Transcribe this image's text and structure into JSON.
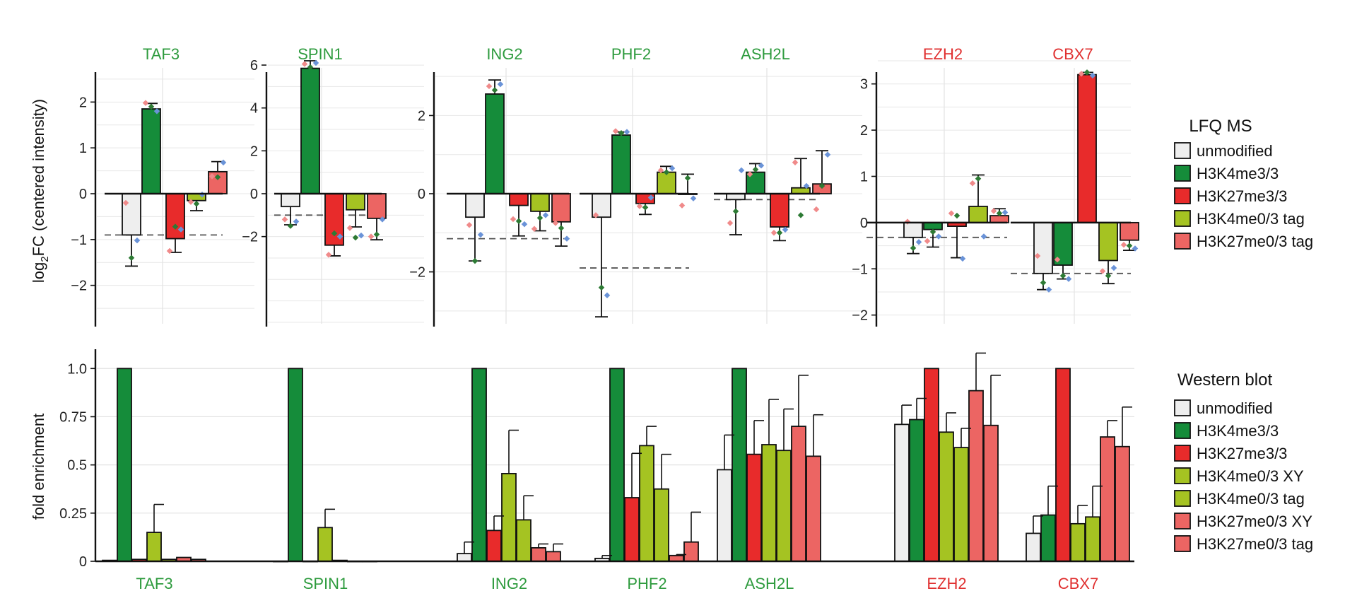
{
  "colors": {
    "green_text": "#2e9b3e",
    "red_text": "#e03030",
    "unmodified": "#eeeeee",
    "h3k4me3": "#158c3a",
    "h3k27me3": "#e82b2b",
    "h3k4me0": "#a5c322",
    "h3k27me0": "#ec6563",
    "dot_red": "#f08a8a",
    "dot_blue": "#6a93d8",
    "dot_green": "#2d7a34"
  },
  "chart_data": [
    {
      "type": "bar",
      "name": "LFQ MS",
      "ylabel": "log2FC (centered intensity)",
      "ylabel_main": "log",
      "ylabel_sub": "2",
      "ylabel_rest": "FC (centered intensity)",
      "legend": {
        "title": "LFQ MS",
        "entries": [
          "unmodified",
          "H3K4me3/3",
          "H3K27me3/3",
          "H3K4me0/3 tag",
          "H3K27me0/3 tag"
        ]
      },
      "groups": [
        {
          "label": "TAF3",
          "label_color": "green",
          "ylim": [
            -2.9,
            2.9
          ],
          "yticks": [
            -2,
            -1,
            0,
            1,
            2
          ],
          "halves": [
            {
              "values": [
                -0.9,
                1.85
              ],
              "errors": [
                0.68,
                0.12
              ],
              "dots": [
                [
                  -0.2,
                  -1.4,
                  -1.02
                ],
                [
                  1.98,
                  1.9,
                  1.8
                ]
              ]
            },
            {
              "values": [
                -0.98,
                -0.15,
                0.48
              ],
              "errors": [
                0.3,
                0.22,
                0.22
              ],
              "dots": [
                [
                  -1.25,
                  -0.72,
                  -0.78
                ],
                [
                  -0.18,
                  -0.22,
                  -0.02
                ],
                [
                  0.38,
                  0.36,
                  0.68
                ]
              ]
            }
          ],
          "baseline": -0.9
        },
        {
          "label": "SPIN1",
          "label_color": "green",
          "ylim": [
            -6.2,
            6.2
          ],
          "yticks": [
            -2,
            0,
            2,
            4,
            6
          ],
          "halves": [
            {
              "values": [
                -0.6,
                5.85
              ],
              "errors": [
                0.85,
                0.35
              ],
              "dots": [
                [
                  -1.2,
                  -1.5,
                  -1.3
                ],
                [
                  6.05,
                  5.9,
                  6.1
                ]
              ]
            },
            {
              "values": [
                -2.4,
                -0.75,
                -1.15
              ],
              "errors": [
                0.5,
                0.8,
                1.0
              ],
              "dots": [
                [
                  -2.85,
                  -1.85,
                  -2.0
                ],
                [
                  -1.6,
                  -2.05,
                  -1.95
                ],
                [
                  -2.0,
                  -1.9,
                  -1.2
                ]
              ]
            }
          ],
          "baseline": -1.0
        },
        {
          "label": "ING2",
          "label_color": "green",
          "ylim": [
            -3.4,
            3.4
          ],
          "yticks": [
            -2,
            0,
            2
          ],
          "halves": [
            {
              "values": [
                -0.6,
                2.55
              ],
              "errors": [
                1.12,
                0.36
              ],
              "dots": [
                [
                  -0.8,
                  -1.72,
                  -1.05
                ],
                [
                  2.75,
                  2.65,
                  2.8
                ]
              ]
            },
            {
              "values": [
                -0.3,
                -0.45,
                -0.72
              ],
              "errors": [
                0.78,
                0.5,
                0.62
              ],
              "dots": [
                [
                  -0.65,
                  -0.7,
                  -0.78
                ],
                [
                  -0.9,
                  -0.62,
                  -0.55
                ],
                [
                  -0.75,
                  -0.88,
                  -1.15
                ]
              ]
            }
          ],
          "baseline": -1.15
        },
        {
          "label": "PHF2",
          "label_color": "green",
          "ylim": [
            -3.4,
            3.4
          ],
          "yticks": [],
          "halves": [
            {
              "values": [
                -0.6,
                1.5
              ],
              "errors": [
                2.55,
                0.08
              ],
              "dots": [
                [
                  -0.55,
                  -2.4,
                  -2.6
                ],
                [
                  1.6,
                  1.55,
                  1.58
                ]
              ]
            },
            {
              "values": [
                -0.25,
                0.55,
                0.0
              ],
              "errors": [
                0.28,
                0.15,
                0.5
              ],
              "dots": [
                [
                  -0.32,
                  -0.35,
                  -0.1
                ],
                [
                  0.6,
                  0.55,
                  0.65
                ],
                [
                  -0.3,
                  0.4,
                  -0.12
                ]
              ]
            }
          ],
          "baseline": -1.9
        },
        {
          "label": "ASH2L",
          "label_color": "green",
          "ylim": [
            -3.4,
            3.4
          ],
          "yticks": [],
          "halves": [
            {
              "values": [
                -0.15,
                0.55
              ],
              "errors": [
                0.9,
                0.22
              ],
              "dots": [
                [
                  -0.75,
                  -0.45,
                  0.6
                ],
                [
                  0.5,
                  0.62,
                  0.72
                ]
              ]
            },
            {
              "values": [
                -0.85,
                0.15,
                0.25
              ],
              "errors": [
                0.35,
                0.75,
                0.85
              ],
              "dots": [
                [
                  -1.0,
                  -1.0,
                  -0.92
                ],
                [
                  0.8,
                  -0.55,
                  0.2
                ],
                [
                  -0.4,
                  0.2,
                  1.0
                ]
              ]
            }
          ],
          "baseline": -0.15
        },
        {
          "label": "EZH2",
          "label_color": "red",
          "ylim": [
            -2.25,
            3.5
          ],
          "yticks": [
            -2,
            -1,
            0,
            1,
            2,
            3
          ],
          "halves": [
            {
              "values": [
                -0.32,
                -0.15
              ],
              "errors": [
                0.35,
                0.38
              ],
              "dots": [
                [
                  0.02,
                  -0.55,
                  -0.42
                ],
                [
                  -0.4,
                  -0.2,
                  -0.3
                ]
              ]
            },
            {
              "values": [
                -0.08,
                0.35,
                0.15
              ],
              "errors": [
                0.68,
                0.68,
                0.15
              ],
              "dots": [
                [
                  0.2,
                  0.15,
                  -0.78
                ],
                [
                  0.85,
                  0.95,
                  -0.3
                ],
                [
                  0.25,
                  0.2,
                  0.22
                ]
              ]
            }
          ],
          "baseline": -0.32
        },
        {
          "label": "CBX7",
          "label_color": "red",
          "ylim": [
            -2.25,
            3.5
          ],
          "yticks": [],
          "halves": [
            {
              "values": [
                -1.1,
                -0.92
              ],
              "errors": [
                0.35,
                0.3
              ],
              "dots": [
                [
                  -0.72,
                  -1.3,
                  -1.45
                ],
                [
                  -0.8,
                  -1.15,
                  -1.22
                ]
              ]
            },
            {
              "values": [
                3.2,
                -0.82,
                -0.38
              ],
              "errors": [
                0.05,
                0.5,
                0.22
              ],
              "dots": [
                [
                  3.22,
                  3.25,
                  3.18
                ],
                [
                  -1.05,
                  -1.15,
                  -0.98
                ],
                [
                  -0.48,
                  -0.5,
                  -0.56
                ]
              ]
            }
          ],
          "baseline": -1.1
        }
      ]
    },
    {
      "type": "bar",
      "name": "Western blot",
      "ylabel": "fold enrichment",
      "ylim": [
        0,
        1.1
      ],
      "yticks": [
        0,
        0.25,
        0.5,
        0.75,
        1.0
      ],
      "ytick_labels": [
        "0",
        "0.25",
        "0.5",
        "0.75",
        "1.0"
      ],
      "legend": {
        "title": "Western blot",
        "entries": [
          "unmodified",
          "H3K4me3/3",
          "H3K27me3/3",
          "H3K4me0/3 XY",
          "H3K4me0/3 tag",
          "H3K27me0/3 XY",
          "H3K27me0/3 tag"
        ]
      },
      "groups": [
        {
          "label": "TAF3",
          "label_color": "green",
          "values": [
            0.005,
            1.0,
            0.01,
            0.15,
            0.01,
            0.02,
            0.01
          ],
          "errors": [
            0,
            0,
            0,
            0.145,
            0,
            0,
            0
          ]
        },
        {
          "label": "SPIN1",
          "label_color": "green",
          "values": [
            0.0,
            1.0,
            0.0,
            0.175,
            0.005,
            0.0,
            0.0
          ],
          "errors": [
            0,
            0,
            0,
            0.095,
            0,
            0,
            0
          ]
        },
        {
          "label": "ING2",
          "label_color": "green",
          "values": [
            0.04,
            1.0,
            0.16,
            0.455,
            0.215,
            0.07,
            0.05
          ],
          "errors": [
            0.06,
            0,
            0.075,
            0.225,
            0.125,
            0.02,
            0.04
          ]
        },
        {
          "label": "PHF2",
          "label_color": "green",
          "values": [
            0.015,
            1.0,
            0.33,
            0.6,
            0.375,
            0.03,
            0.1
          ],
          "errors": [
            0.015,
            0,
            0.23,
            0.1,
            0.18,
            0.005,
            0.155
          ]
        },
        {
          "label": "ASH2L",
          "label_color": "green",
          "values": [
            0.475,
            1.0,
            0.555,
            0.605,
            0.575,
            0.7,
            0.545
          ],
          "errors": [
            0.18,
            0,
            0.175,
            0.235,
            0.215,
            0.265,
            0.215
          ]
        },
        {
          "label": "EZH2",
          "label_color": "red",
          "values": [
            0.71,
            0.735,
            1.0,
            0.67,
            0.59,
            0.885,
            0.705
          ],
          "errors": [
            0.1,
            0.11,
            0,
            0.1,
            0.1,
            0.195,
            0.26
          ]
        },
        {
          "label": "CBX7",
          "label_color": "red",
          "values": [
            0.145,
            0.24,
            1.0,
            0.195,
            0.23,
            0.645,
            0.595
          ],
          "errors": [
            0.09,
            0.15,
            0,
            0.095,
            0.16,
            0.085,
            0.205
          ]
        }
      ]
    }
  ]
}
